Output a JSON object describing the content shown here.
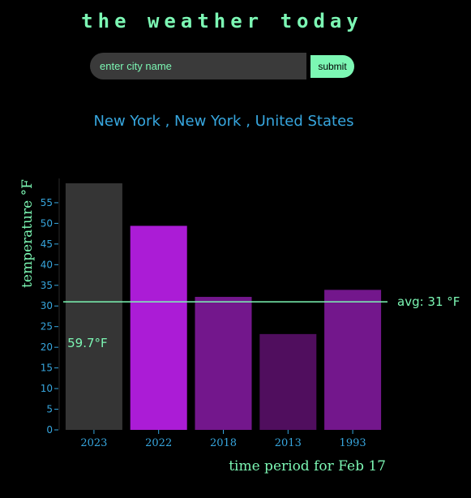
{
  "app": {
    "title": "the weather today"
  },
  "search": {
    "placeholder": "enter city name",
    "value": "",
    "submit_label": "submit"
  },
  "location": {
    "text": "New York , New York , United States"
  },
  "colors": {
    "background": "#000000",
    "accent": "#7cf7b4",
    "location_text": "#37a6de",
    "axis_ticks": "#37a6de"
  },
  "chart_data": {
    "type": "bar",
    "title": "",
    "xlabel": "time period for Feb 17",
    "ylabel": "temperature °F",
    "ylim": [
      0,
      59.7
    ],
    "yticks": [
      0,
      5,
      10,
      15,
      20,
      25,
      30,
      35,
      40,
      45,
      50,
      55
    ],
    "categories": [
      "2023",
      "2022",
      "2018",
      "2013",
      "1993"
    ],
    "values": [
      59.7,
      49.4,
      32.2,
      23.2,
      33.9
    ],
    "bar_colors": [
      "#353535",
      "#ab1cd6",
      "#73178c",
      "#500e5e",
      "#73178c"
    ],
    "data_labels": [
      {
        "category": "2023",
        "text": "59.7°F"
      }
    ],
    "average": {
      "value": 31,
      "label": "avg: 31 °F",
      "color": "#7cf7b4"
    },
    "grid": false,
    "legend": "none"
  }
}
